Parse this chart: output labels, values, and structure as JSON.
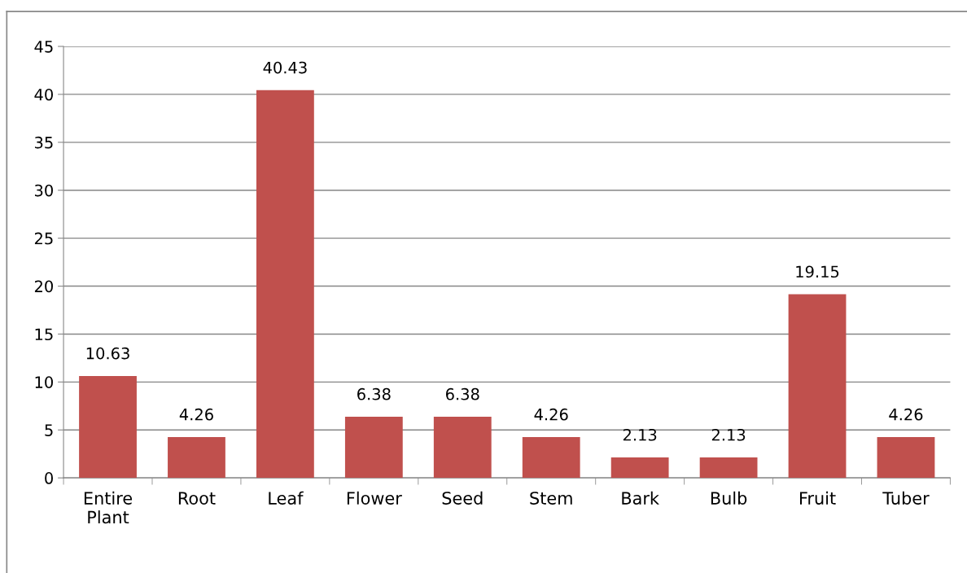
{
  "chart_data": {
    "type": "bar",
    "categories": [
      "Entire Plant",
      "Root",
      "Leaf",
      "Flower",
      "Seed",
      "Stem",
      "Bark",
      "Bulb",
      "Fruit",
      "Tuber"
    ],
    "values": [
      10.63,
      4.26,
      40.43,
      6.38,
      6.38,
      4.26,
      2.13,
      2.13,
      19.15,
      4.26
    ],
    "color": "#c0504d",
    "ylim": [
      0,
      45
    ],
    "yticks": [
      0,
      5,
      10,
      15,
      20,
      25,
      30,
      35,
      40,
      45
    ],
    "grid": "y",
    "data_labels": true,
    "legend": false
  }
}
